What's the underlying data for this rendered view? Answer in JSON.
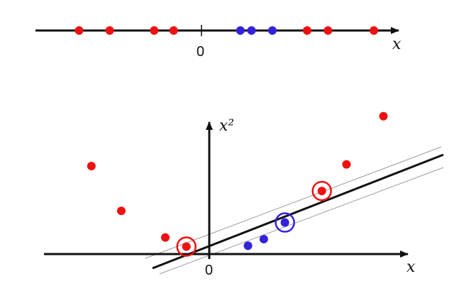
{
  "colors": {
    "axis": "#111111",
    "red": "#ee1111",
    "blue": "#3322dd",
    "margin_line": "#9a9a9a"
  },
  "top_panel": {
    "axis_label": "x",
    "origin_label": "0",
    "points": [
      {
        "x": -8.8,
        "class": "red"
      },
      {
        "x": -6.6,
        "class": "red"
      },
      {
        "x": -3.4,
        "class": "red"
      },
      {
        "x": -2.0,
        "class": "red"
      },
      {
        "x": 2.8,
        "class": "blue"
      },
      {
        "x": 3.6,
        "class": "blue"
      },
      {
        "x": 5.1,
        "class": "blue"
      },
      {
        "x": 7.6,
        "class": "red"
      },
      {
        "x": 9.1,
        "class": "red"
      },
      {
        "x": 12.4,
        "class": "red"
      }
    ]
  },
  "bottom_panel": {
    "x_axis_label": "x",
    "y_axis_label": "x²",
    "origin_label": "0",
    "points": [
      {
        "x": -6.7,
        "y": 5.3,
        "class": "red",
        "support_vector": false
      },
      {
        "x": -5.0,
        "y": 2.6,
        "class": "red",
        "support_vector": false
      },
      {
        "x": -2.5,
        "y": 1.0,
        "class": "red",
        "support_vector": false
      },
      {
        "x": -1.3,
        "y": 0.45,
        "class": "red",
        "support_vector": true
      },
      {
        "x": 2.2,
        "y": 0.5,
        "class": "blue",
        "support_vector": false
      },
      {
        "x": 3.1,
        "y": 0.9,
        "class": "blue",
        "support_vector": false
      },
      {
        "x": 4.3,
        "y": 1.9,
        "class": "blue",
        "support_vector": true
      },
      {
        "x": 6.4,
        "y": 3.8,
        "class": "red",
        "support_vector": true
      },
      {
        "x": 7.8,
        "y": 5.4,
        "class": "red",
        "support_vector": false
      },
      {
        "x": 9.9,
        "y": 8.3,
        "class": "red",
        "support_vector": false
      }
    ]
  }
}
